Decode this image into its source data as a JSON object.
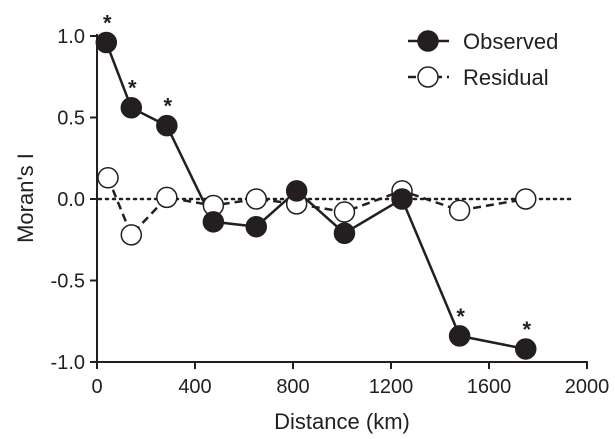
{
  "chart_data": {
    "type": "line",
    "xlabel": "Distance (km)",
    "ylabel": "Moran's I",
    "xlim": [
      0,
      2000
    ],
    "ylim": [
      -1.0,
      1.0
    ],
    "x_ticks": [
      0,
      400,
      800,
      1200,
      1600,
      2000
    ],
    "x_tick_labels": [
      "0",
      "400",
      "800",
      "1200",
      "1600",
      "2000"
    ],
    "y_ticks": [
      1.0,
      0.5,
      0.0,
      -0.5,
      -1.0
    ],
    "y_tick_labels": [
      "1.0",
      "0.5",
      "0.0",
      "-0.5",
      "-1.0"
    ],
    "grid": false,
    "legend_position": "top-right",
    "reference_line": {
      "y": 0,
      "style": "dotted"
    },
    "significance_marker": "*",
    "series": [
      {
        "name": "Observed",
        "marker": "filled-circle",
        "line_style": "solid",
        "x": [
          38,
          140,
          285,
          475,
          650,
          815,
          1010,
          1245,
          1480,
          1750
        ],
        "y": [
          0.96,
          0.56,
          0.45,
          -0.14,
          -0.17,
          0.05,
          -0.21,
          0.0,
          -0.84,
          -0.92
        ],
        "significant": [
          true,
          true,
          true,
          false,
          false,
          false,
          false,
          false,
          true,
          true
        ]
      },
      {
        "name": "Residual",
        "marker": "open-circle",
        "line_style": "dashed",
        "x": [
          45,
          140,
          285,
          475,
          650,
          815,
          1010,
          1245,
          1480,
          1750
        ],
        "y": [
          0.13,
          -0.22,
          0.01,
          -0.04,
          0.0,
          -0.03,
          -0.08,
          0.05,
          -0.07,
          0.0
        ]
      }
    ]
  }
}
